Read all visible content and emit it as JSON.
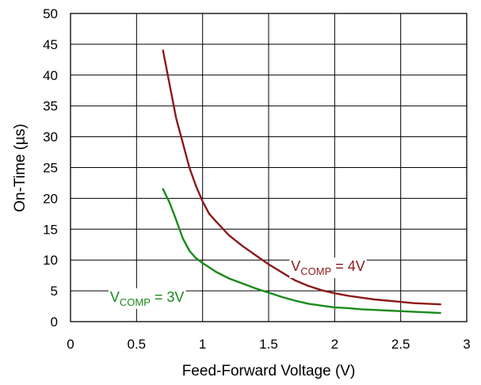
{
  "chart_data": {
    "type": "line",
    "xlabel": "Feed-Forward Voltage (V)",
    "ylabel": "On-Time (µs)",
    "xlim": [
      0,
      3
    ],
    "ylim": [
      0,
      50
    ],
    "x_ticks": [
      "0",
      "0.5",
      "1",
      "1.5",
      "2",
      "2.5",
      "3"
    ],
    "y_ticks": [
      "0",
      "5",
      "10",
      "15",
      "20",
      "25",
      "30",
      "35",
      "40",
      "45",
      "50"
    ],
    "grid": true,
    "series": [
      {
        "color": "#8b1a1a",
        "x": [
          0.7,
          0.75,
          0.8,
          0.85,
          0.9,
          0.95,
          1.0,
          1.05,
          1.1,
          1.2,
          1.3,
          1.4,
          1.5,
          1.6,
          1.7,
          1.8,
          1.9,
          2.0,
          2.1,
          2.2,
          2.3,
          2.4,
          2.5,
          2.6,
          2.7,
          2.8
        ],
        "y": [
          44,
          38.5,
          33,
          29,
          25,
          22,
          19.5,
          17.5,
          16.3,
          14,
          12.3,
          10.8,
          9.3,
          8,
          6.7,
          5.8,
          5.1,
          4.6,
          4.2,
          3.9,
          3.6,
          3.4,
          3.2,
          3.0,
          2.9,
          2.8
        ],
        "annotation": {
          "main": "V",
          "sub": "COMP",
          "rest": " = 4V",
          "x": 1.95,
          "y": 9
        }
      },
      {
        "color": "#1a8a1a",
        "x": [
          0.7,
          0.75,
          0.8,
          0.85,
          0.9,
          0.95,
          1.0,
          1.05,
          1.1,
          1.2,
          1.3,
          1.4,
          1.5,
          1.6,
          1.7,
          1.8,
          1.9,
          2.0,
          2.1,
          2.2,
          2.3,
          2.4,
          2.5,
          2.6,
          2.7,
          2.8
        ],
        "y": [
          21.5,
          19.3,
          16.5,
          13.5,
          11.5,
          10.3,
          9.5,
          8.8,
          8.1,
          7.0,
          6.2,
          5.4,
          4.7,
          4.0,
          3.4,
          2.9,
          2.6,
          2.3,
          2.2,
          2.0,
          1.9,
          1.8,
          1.7,
          1.6,
          1.5,
          1.4
        ],
        "annotation": {
          "main": "V",
          "sub": "COMP",
          "rest": " = 3V",
          "x": 0.58,
          "y": 4
        }
      }
    ]
  }
}
